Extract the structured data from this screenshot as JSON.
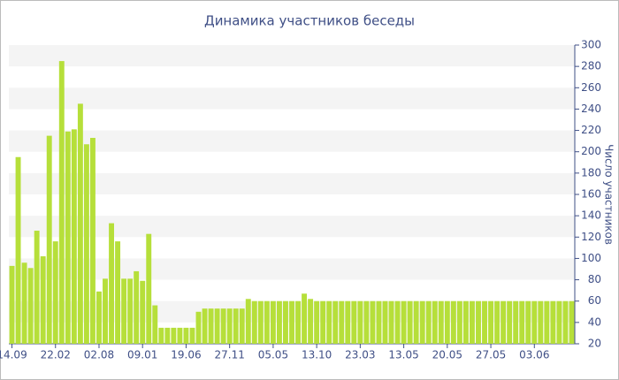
{
  "chart_data": {
    "type": "bar",
    "title": "Динамика участников беседы",
    "y_label": "Число участников",
    "categories": [
      "14.09",
      null,
      null,
      null,
      null,
      null,
      null,
      "22.02",
      null,
      null,
      null,
      null,
      null,
      null,
      "02.08",
      null,
      null,
      null,
      null,
      null,
      null,
      "09.01",
      null,
      null,
      null,
      null,
      null,
      null,
      "19.06",
      null,
      null,
      null,
      null,
      null,
      null,
      "27.11",
      null,
      null,
      null,
      null,
      null,
      null,
      "05.05",
      null,
      null,
      null,
      null,
      null,
      null,
      "13.10",
      null,
      null,
      null,
      null,
      null,
      null,
      "23.03",
      null,
      null,
      null,
      null,
      null,
      null,
      "13.05",
      null,
      null,
      null,
      null,
      null,
      null,
      "20.05",
      null,
      null,
      null,
      null,
      null,
      null,
      "27.05",
      null,
      null,
      null,
      null,
      null,
      null,
      "03.06",
      null,
      null,
      null,
      null,
      null,
      null
    ],
    "values": [
      93,
      195,
      96,
      91,
      126,
      102,
      215,
      116,
      285,
      219,
      221,
      245,
      207,
      213,
      69,
      81,
      133,
      116,
      81,
      81,
      88,
      79,
      123,
      56,
      35,
      35,
      35,
      35,
      35,
      35,
      50,
      53,
      53,
      53,
      53,
      53,
      53,
      53,
      62,
      60,
      60,
      60,
      60,
      60,
      60,
      60,
      60,
      67,
      62,
      60,
      60,
      60,
      60,
      60,
      60,
      60,
      60,
      60,
      60,
      60,
      60,
      60,
      60,
      60,
      60,
      60,
      60,
      60,
      60,
      60,
      60,
      60,
      60,
      60,
      60,
      60,
      60,
      60,
      60,
      60,
      60,
      60,
      60,
      60,
      60,
      60,
      60,
      60,
      60,
      60,
      60
    ],
    "color": "#b6df3a",
    "ylim": [
      20,
      300
    ],
    "yticks": [
      20,
      40,
      60,
      80,
      100,
      120,
      140,
      160,
      180,
      200,
      220,
      240,
      260,
      280,
      300
    ],
    "y_axis_side": "right",
    "bands": true
  }
}
